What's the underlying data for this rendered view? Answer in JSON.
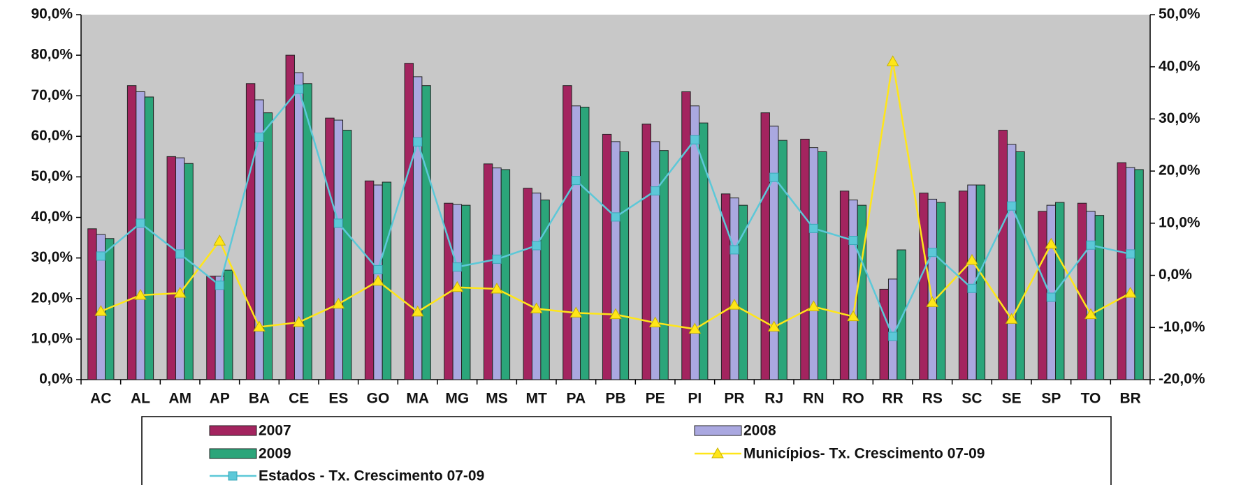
{
  "chart_data": {
    "type": "bar",
    "categories": [
      "AC",
      "AL",
      "AM",
      "AP",
      "BA",
      "CE",
      "ES",
      "GO",
      "MA",
      "MG",
      "MS",
      "MT",
      "PA",
      "PB",
      "PE",
      "PI",
      "PR",
      "RJ",
      "RN",
      "RO",
      "RR",
      "RS",
      "SC",
      "SE",
      "SP",
      "TO",
      "BR"
    ],
    "series": [
      {
        "name": "2007",
        "color": "#a3245f",
        "type": "bar",
        "values": [
          37.2,
          72.5,
          55,
          25.5,
          73,
          80,
          64.5,
          49,
          78,
          43.5,
          53.2,
          47.2,
          72.5,
          60.5,
          63,
          71,
          45.8,
          65.8,
          59.3,
          46.5,
          22.3,
          46,
          46.5,
          61.5,
          41.5,
          43.5,
          53.5
        ]
      },
      {
        "name": "2008",
        "color": "#aaa8e0",
        "type": "bar",
        "values": [
          35.8,
          71,
          54.7,
          25.5,
          69,
          75.7,
          64,
          48,
          74.7,
          43.2,
          52.2,
          46,
          67.5,
          58.7,
          58.7,
          67.5,
          44.8,
          62.5,
          57.2,
          44.3,
          24.8,
          44.5,
          48,
          58,
          43,
          41.5,
          52.3
        ]
      },
      {
        "name": "2009",
        "color": "#2ba57a",
        "type": "bar",
        "values": [
          34.8,
          69.7,
          53.3,
          27,
          65.8,
          73,
          61.5,
          48.7,
          72.5,
          43,
          51.8,
          44.3,
          67.2,
          56.2,
          56.5,
          63.3,
          43,
          59,
          56.2,
          43,
          32,
          43.7,
          48,
          56.2,
          43.7,
          40.5,
          51.8
        ]
      },
      {
        "name": "Municípios- Tx. Crescimento 07-09",
        "color": "#ffe619",
        "type": "line",
        "marker": "triangle",
        "axis": "y2",
        "values": [
          -6.9,
          -3.8,
          -3.4,
          6.6,
          -9.9,
          -9,
          -5.5,
          -1.1,
          -7,
          -2.3,
          -2.6,
          -6.4,
          -7.2,
          -7.5,
          -9.1,
          -10.3,
          -5.7,
          -9.9,
          -6,
          -7.9,
          41,
          -5.2,
          2.9,
          -8.4,
          6,
          -7.5,
          -3.4
        ]
      },
      {
        "name": "Estados - Tx. Crescimento 07-09",
        "color": "#5cc8d8",
        "type": "line",
        "marker": "square",
        "axis": "y2",
        "values": [
          3.7,
          10,
          4.1,
          -1.9,
          26.5,
          35.7,
          10,
          1.1,
          25.6,
          1.6,
          3.1,
          5.7,
          18.2,
          11.2,
          16.2,
          26,
          4.9,
          18.8,
          9,
          6.7,
          -11.7,
          4.4,
          -2.5,
          13.3,
          -4.2,
          5.8,
          4.1
        ]
      }
    ],
    "ylim": [
      0,
      90
    ],
    "yticks": [
      {
        "value": 0,
        "label": "0,0%"
      },
      {
        "value": 10,
        "label": "10,0%"
      },
      {
        "value": 20,
        "label": "20,0%"
      },
      {
        "value": 30,
        "label": "30,0%"
      },
      {
        "value": 40,
        "label": "40,0%"
      },
      {
        "value": 50,
        "label": "50,0%"
      },
      {
        "value": 60,
        "label": "60,0%"
      },
      {
        "value": 70,
        "label": "70,0%"
      },
      {
        "value": 80,
        "label": "80,0%"
      },
      {
        "value": 90,
        "label": "90,0%"
      }
    ],
    "y2lim": [
      -20,
      50
    ],
    "y2ticks": [
      {
        "value": -20,
        "label": "-20,0%"
      },
      {
        "value": -10,
        "label": "-10,0%"
      },
      {
        "value": 0,
        "label": "0,0%"
      },
      {
        "value": 10,
        "label": "10,0%"
      },
      {
        "value": 20,
        "label": "20,0%"
      },
      {
        "value": 30,
        "label": "30,0%"
      },
      {
        "value": 40,
        "label": "40,0%"
      },
      {
        "value": 50,
        "label": "50,0%"
      }
    ],
    "plot_background": "#c8c8c8",
    "legend": "bottom"
  }
}
